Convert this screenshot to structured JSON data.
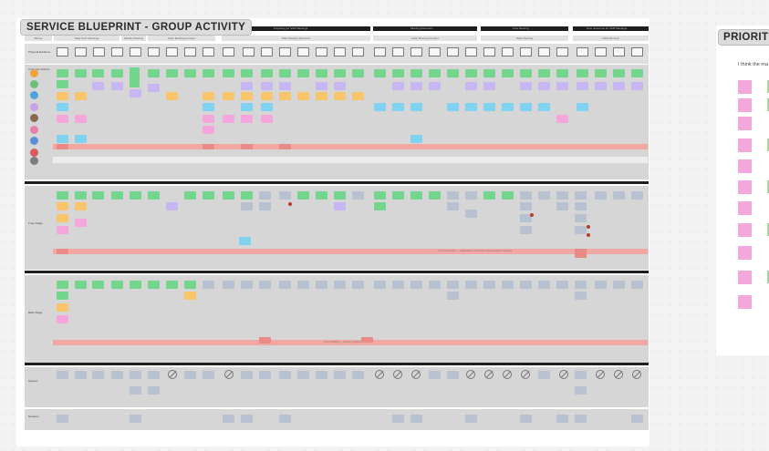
{
  "board": {
    "title": "SERVICE BLUEPRINT - GROUP ACTIVITY",
    "phases": [
      "Preparing for Staff Meetings",
      "Meeting Execution",
      "Post Meeting",
      "New resources for Staff Meetings"
    ],
    "sub_phases": [
      "Before",
      "Daily Prior Meetings",
      "Weekly Meeting",
      "Daily Meeting Content",
      "Daily Meeting Resource",
      "Daily Meeting Content",
      "Daily Meeting",
      "Daily Meeting"
    ],
    "row_labels": {
      "touchpoints": "Physical Evidence",
      "actions": "Customer Actions",
      "frontstage": "Front Stage",
      "backstage": "Back Stage",
      "support": "Support",
      "systems": "Systems"
    },
    "notes": {
      "stripe_frontstage": "Line of interaction — stakeholders and actions observed across meetings",
      "stripe_backstage": "Line of visibility — internal processes",
      "stripe_support": "Line of internal interaction"
    }
  },
  "priorities_panel": {
    "title": "PRIORITIE",
    "subtitle": "I think the ma"
  },
  "colors": {
    "green_sticky": "#74d58c",
    "orange_sticky": "#f8c56b",
    "pink_sticky": "#f5a6dc",
    "blue_sticky": "#7fd2f0",
    "purple_sticky": "#c7b6f2",
    "gray_sticky": "#b8c1cf",
    "red_stripe": "#f3a7a3",
    "divider": "#1e1e1e"
  }
}
